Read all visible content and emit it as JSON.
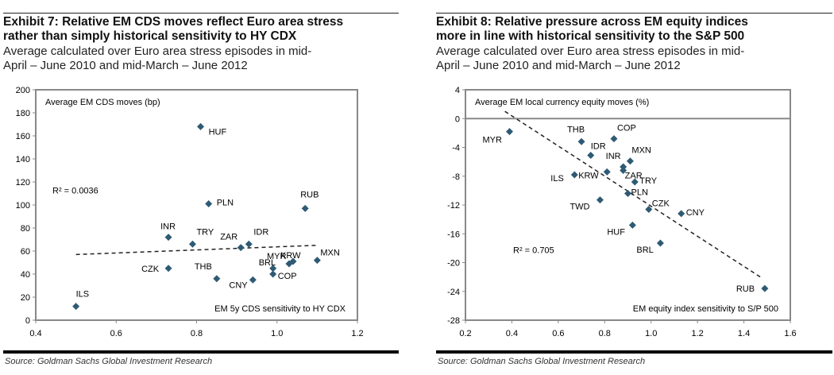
{
  "chart_data": [
    {
      "type": "scatter",
      "title": "Exhibit 7: Relative EM CDS moves reflect Euro area stress",
      "title_line2": "rather than simply historical sensitivity to HY CDX",
      "subtitle": "Average calculated over Euro area stress episodes in mid-",
      "subtitle_line2": "April – June 2010 and mid-March – June 2012",
      "ylabel": "Average EM CDS moves (bp)",
      "xlabel": "EM 5y CDS sensitivity to HY CDX",
      "xlim": [
        0.4,
        1.2
      ],
      "ylim": [
        0,
        200
      ],
      "xticks": [
        "0.4",
        "0.6",
        "0.8",
        "1.0",
        "1.2"
      ],
      "yticks": [
        "0",
        "20",
        "40",
        "60",
        "80",
        "100",
        "120",
        "140",
        "160",
        "180",
        "200"
      ],
      "annotation": "R² = 0.0036",
      "trendline": [
        [
          0.5,
          57
        ],
        [
          1.1,
          65
        ]
      ],
      "marker_color": "#2e5a74",
      "points": [
        {
          "label": "HUF",
          "x": 0.81,
          "y": 168
        },
        {
          "label": "PLN",
          "x": 0.83,
          "y": 101
        },
        {
          "label": "RUB",
          "x": 1.07,
          "y": 97
        },
        {
          "label": "INR",
          "x": 0.73,
          "y": 72
        },
        {
          "label": "TRY",
          "x": 0.79,
          "y": 66
        },
        {
          "label": "ZAR",
          "x": 0.91,
          "y": 63
        },
        {
          "label": "IDR",
          "x": 0.93,
          "y": 66
        },
        {
          "label": "MXN",
          "x": 1.1,
          "y": 52
        },
        {
          "label": "KRW",
          "x": 1.04,
          "y": 51
        },
        {
          "label": "MYR",
          "x": 1.03,
          "y": 49
        },
        {
          "label": "BRL",
          "x": 0.99,
          "y": 45
        },
        {
          "label": "COP",
          "x": 0.99,
          "y": 40
        },
        {
          "label": "CNY",
          "x": 0.94,
          "y": 35
        },
        {
          "label": "THB",
          "x": 0.85,
          "y": 36
        },
        {
          "label": "CZK",
          "x": 0.73,
          "y": 45
        },
        {
          "label": "ILS",
          "x": 0.5,
          "y": 12
        }
      ]
    },
    {
      "type": "scatter",
      "title": "Exhibit 8: Relative pressure across EM equity indices",
      "title_line2": "more in line with historical sensitivity to the S&P 500",
      "subtitle": "Average calculated over Euro area stress episodes in mid-",
      "subtitle_line2": "April – June 2010 and mid-March – June 2012",
      "ylabel": "Average EM local currency equity moves (%)",
      "xlabel": "EM equity index sensitivity to S/P 500",
      "xlim": [
        0.2,
        1.6
      ],
      "ylim": [
        -28,
        4
      ],
      "xticks": [
        "0.2",
        "0.4",
        "0.6",
        "0.8",
        "1.0",
        "1.2",
        "1.4",
        "1.6"
      ],
      "yticks": [
        "-28",
        "-24",
        "-20",
        "-16",
        "-12",
        "-8",
        "-4",
        "0",
        "4"
      ],
      "annotation": "R² = 0.705",
      "trendline": [
        [
          0.37,
          1.0
        ],
        [
          1.48,
          -22.2
        ]
      ],
      "marker_color": "#2e5a74",
      "points": [
        {
          "label": "MYR",
          "x": 0.39,
          "y": -1.8
        },
        {
          "label": "THB",
          "x": 0.7,
          "y": -3.2
        },
        {
          "label": "COP",
          "x": 0.84,
          "y": -2.8
        },
        {
          "label": "IDR",
          "x": 0.74,
          "y": -5.1
        },
        {
          "label": "MXN",
          "x": 0.91,
          "y": -5.9
        },
        {
          "label": "INR",
          "x": 0.88,
          "y": -6.7
        },
        {
          "label": "ZAR",
          "x": 0.88,
          "y": -7.2
        },
        {
          "label": "KRW",
          "x": 0.81,
          "y": -7.4
        },
        {
          "label": "ILS",
          "x": 0.67,
          "y": -7.8
        },
        {
          "label": "TRY",
          "x": 0.93,
          "y": -8.8
        },
        {
          "label": "PLN",
          "x": 0.9,
          "y": -10.4
        },
        {
          "label": "TWD",
          "x": 0.78,
          "y": -11.3
        },
        {
          "label": "CZK",
          "x": 0.99,
          "y": -12.6
        },
        {
          "label": "CNY",
          "x": 1.13,
          "y": -13.2
        },
        {
          "label": "HUF",
          "x": 0.92,
          "y": -14.8
        },
        {
          "label": "BRL",
          "x": 1.04,
          "y": -17.3
        },
        {
          "label": "RUB",
          "x": 1.49,
          "y": -23.6
        }
      ]
    }
  ],
  "source": "Source: Goldman Sachs Global Investment Research"
}
